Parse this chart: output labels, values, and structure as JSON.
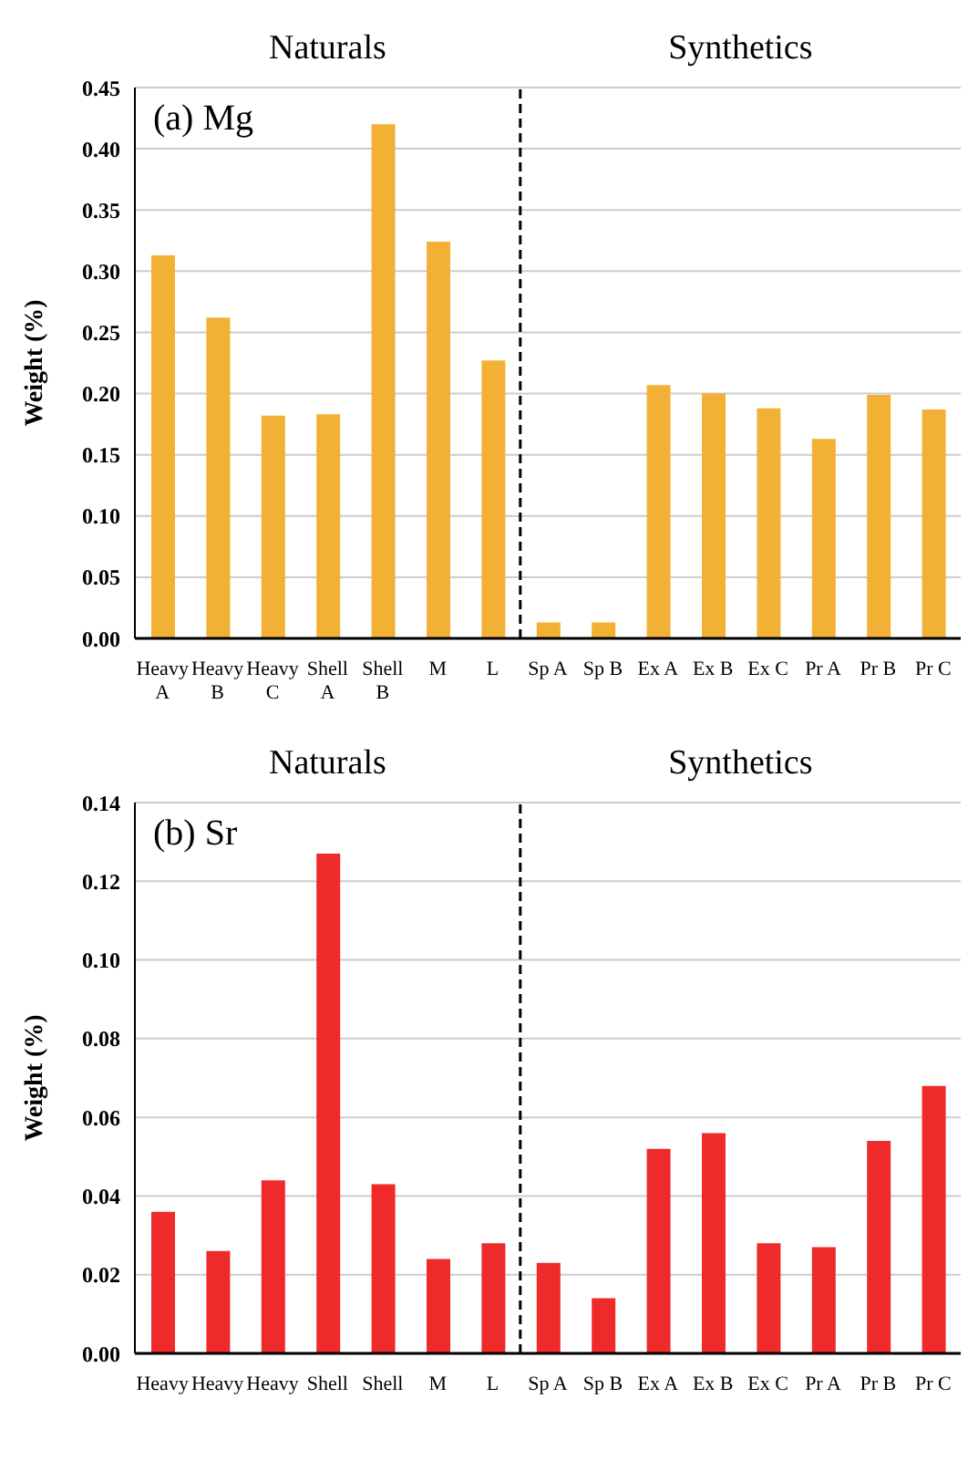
{
  "chart_data": [
    {
      "type": "bar",
      "title": "(a) Mg",
      "ylabel": "Weight (%)",
      "annotations": [
        "Naturals",
        "Synthetics"
      ],
      "categories": [
        "Heavy A",
        "Heavy B",
        "Heavy C",
        "Shell A",
        "Shell B",
        "M",
        "L",
        "Sp A",
        "Sp B",
        "Ex A",
        "Ex B",
        "Ex C",
        "Pr A",
        "Pr B",
        "Pr C"
      ],
      "series": [
        {
          "color": "#f2b134",
          "values": [
            0.313,
            0.262,
            0.182,
            0.183,
            0.42,
            0.324,
            0.227,
            0.013,
            0.013,
            0.207,
            0.2,
            0.188,
            0.163,
            0.199,
            0.187
          ]
        }
      ],
      "ylim": [
        0,
        0.45
      ],
      "yticks": [
        {
          "value": 0,
          "label": "0.00"
        },
        0.05,
        {
          "value": 0.1,
          "label": "0.10"
        },
        0.15,
        {
          "value": 0.2,
          "label": "0.20"
        },
        0.25,
        {
          "value": 0.3,
          "label": "0.30"
        },
        0.35,
        {
          "value": 0.4,
          "label": "0.40"
        },
        0.45
      ],
      "ref_lines": [
        {
          "axis": "x",
          "value": "Sp A",
          "line_style": "dashed",
          "color": "#000000"
        }
      ],
      "grid": "y"
    },
    {
      "type": "bar",
      "title": "(b) Sr",
      "ylabel": "Weight (%)",
      "annotations": [
        "Naturals",
        "Synthetics"
      ],
      "categories": [
        "Heavy",
        "Heavy",
        "Heavy",
        "Shell",
        "Shell",
        "M",
        "L",
        "Sp A",
        "Sp B",
        "Ex A",
        "Ex B",
        "Ex C",
        "Pr A",
        "Pr B",
        "Pr C"
      ],
      "series": [
        {
          "color": "#ee2a2a",
          "values": [
            0.036,
            0.026,
            0.044,
            0.127,
            0.043,
            0.024,
            0.028,
            0.023,
            0.014,
            0.052,
            0.056,
            0.028,
            0.027,
            0.054,
            0.068
          ]
        }
      ],
      "ylim": [
        0,
        0.14
      ],
      "yticks": [
        {
          "value": 0,
          "label": "0.00"
        },
        0.02,
        0.04,
        0.06,
        0.08,
        {
          "value": 0.1,
          "label": "0.10"
        },
        0.12,
        0.14
      ],
      "ref_lines": [
        {
          "axis": "x",
          "value": "Sp A",
          "line_style": "dashed",
          "color": "#000000"
        }
      ],
      "grid": "y"
    }
  ]
}
